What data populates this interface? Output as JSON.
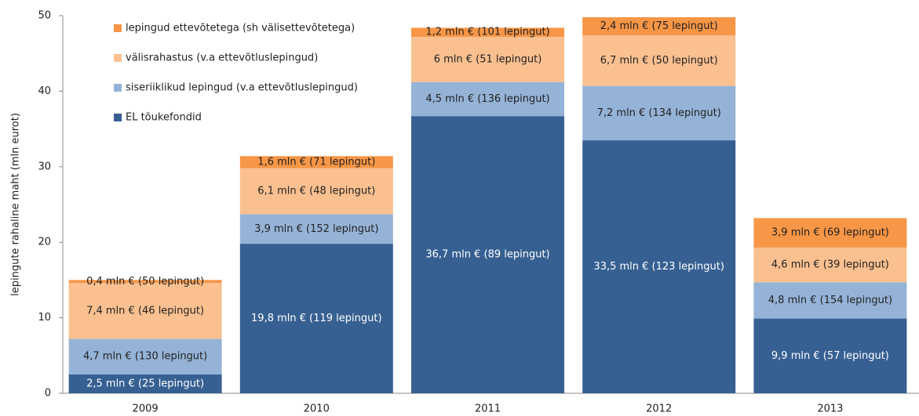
{
  "chart_data": {
    "type": "stacked_bar",
    "y_label": "lepingute rahaline maht (mln eurot)",
    "categories": [
      "2009",
      "2010",
      "2011",
      "2012",
      "2013"
    ],
    "ylim": [
      0,
      50
    ],
    "yticks": [
      0,
      10,
      20,
      30,
      40,
      50
    ],
    "series": [
      {
        "name": "EL tõukefondid",
        "color": "#376092",
        "values": [
          2.5,
          19.8,
          36.7,
          33.5,
          9.9
        ],
        "value_labels": [
          "2,5 mln € (25 lepingut)",
          "19,8 mln € (119 lepingut)",
          "36,7 mln € (89 lepingut)",
          "33,5 mln € (123 lepingut)",
          "9,9 mln € (57 lepingut)"
        ]
      },
      {
        "name": "siseriiklikud lepingud (v.a ettevõtluslepingud)",
        "color": "#95b3d7",
        "values": [
          4.7,
          3.9,
          4.5,
          7.2,
          4.8
        ],
        "value_labels": [
          "4,7 mln € (130 lepingut)",
          "3,9 mln € (152 lepingut)",
          "4,5 mln € (136 lepingut)",
          "7,2 mln € (134 lepingut)",
          "4,8 mln € (154 lepingut)"
        ]
      },
      {
        "name": "välisrahastus (v.a ettevõtluslepingud)",
        "color": "#fac090",
        "values": [
          7.4,
          6.1,
          6,
          6.7,
          4.6
        ],
        "value_labels": [
          "7,4 mln € (46 lepingut)",
          "6,1 mln € (48 lepingut)",
          "6 mln € (51 lepingut)",
          "6,7 mln € (50 lepingut)",
          "4,6 mln € (39 lepingut)"
        ]
      },
      {
        "name": "lepingud ettevõtetega (sh välisettevõtetega)",
        "color": "#f79646",
        "values": [
          0.4,
          1.6,
          1.2,
          2.4,
          3.9
        ],
        "value_labels": [
          "0,4 mln € (50 lepingut)",
          "1,6 mln € (71 lepingut)",
          "1,2 mln € (101 lepingut)",
          "2,4 mln € (75 lepingut)",
          "3,9 mln € (69 lepingut)"
        ]
      }
    ]
  }
}
